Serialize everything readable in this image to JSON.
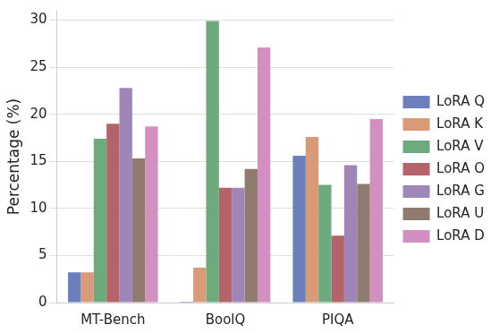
{
  "chart_data": {
    "type": "bar",
    "y_label": "Percentage (%)",
    "categories": [
      "MT-Bench",
      "BoolQ",
      "PIQA"
    ],
    "series": [
      {
        "name": "LoRA Q",
        "color": "#6c7fbd",
        "values": [
          3.2,
          0.1,
          15.6
        ]
      },
      {
        "name": "LoRA K",
        "color": "#d99a78",
        "values": [
          3.2,
          3.7,
          17.6
        ]
      },
      {
        "name": "LoRA V",
        "color": "#6dab7d",
        "values": [
          17.4,
          29.9,
          12.5
        ]
      },
      {
        "name": "LoRA O",
        "color": "#b5636a",
        "values": [
          19.0,
          12.2,
          7.1
        ]
      },
      {
        "name": "LoRA G",
        "color": "#9f86b8",
        "values": [
          22.8,
          12.2,
          14.6
        ]
      },
      {
        "name": "LoRA U",
        "color": "#8f7b6f",
        "values": [
          15.3,
          14.2,
          12.6
        ]
      },
      {
        "name": "LoRA D",
        "color": "#d190c0",
        "values": [
          18.7,
          27.1,
          19.5
        ]
      }
    ],
    "ylim": [
      0,
      31
    ],
    "yticks": [
      0,
      5,
      10,
      15,
      20,
      25,
      30
    ],
    "grid": true,
    "legend": "right"
  }
}
